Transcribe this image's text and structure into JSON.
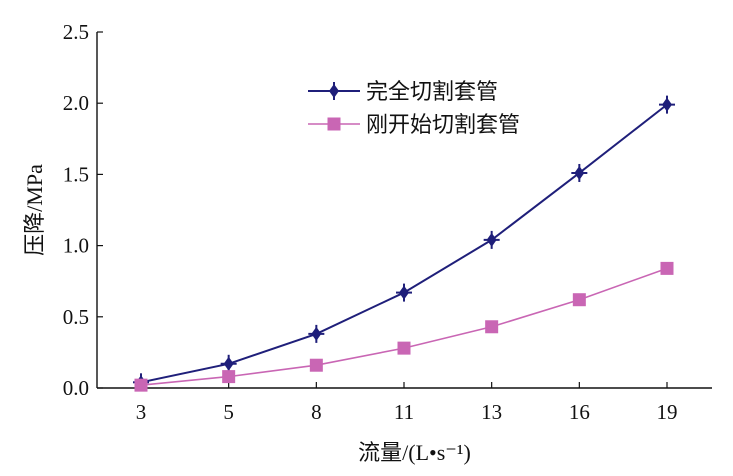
{
  "chart_data": {
    "type": "line",
    "title": "",
    "xlabel": "流量/(L•s⁻¹)",
    "ylabel": "压降/MPa",
    "categories": [
      "3",
      "5",
      "8",
      "11",
      "13",
      "16",
      "19"
    ],
    "ylim": [
      0.0,
      2.5
    ],
    "yticks": [
      "0.0",
      "0.5",
      "1.0",
      "1.5",
      "2.0",
      "2.5"
    ],
    "grid": false,
    "legend_position": "top-center",
    "series": [
      {
        "name": "完全切割套管",
        "marker": "diamond-cross",
        "color": "#1f1f7a",
        "values": [
          0.04,
          0.17,
          0.38,
          0.67,
          1.04,
          1.51,
          1.99
        ]
      },
      {
        "name": "刚开始切割套管",
        "marker": "square",
        "color": "#c966b4",
        "values": [
          0.02,
          0.08,
          0.16,
          0.28,
          0.43,
          0.62,
          0.84
        ]
      }
    ]
  }
}
